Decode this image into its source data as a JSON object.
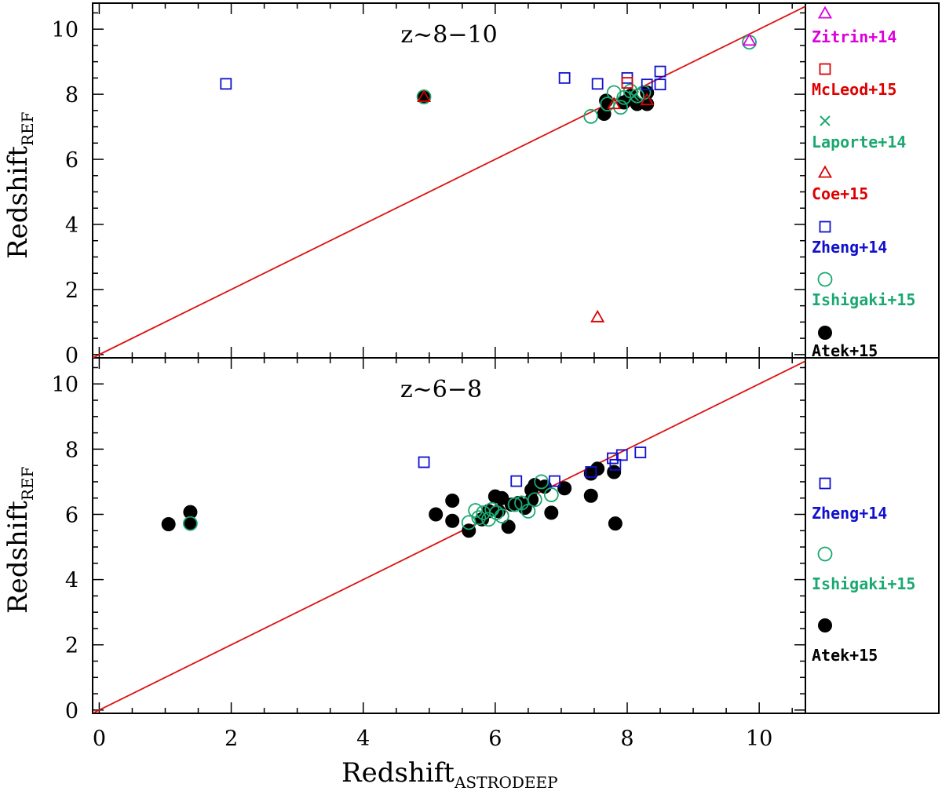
{
  "chart_data": [
    {
      "type": "scatter",
      "title": "z~8−10",
      "xlabel": "Redshift",
      "xlabel_sub": "ASTRODEEP",
      "ylabel": "Redshift",
      "ylabel_sub": "REF",
      "xlim": [
        -0.1,
        10.7
      ],
      "ylim": [
        -0.1,
        10.8
      ],
      "xticks": [
        0,
        2,
        4,
        6,
        8,
        10
      ],
      "yticks": [
        0,
        2,
        4,
        6,
        8,
        10
      ],
      "reference_line": "one-to-one",
      "series": [
        {
          "name": "Atek+15",
          "marker": "filled-circle",
          "color": "#000000",
          "points": [
            [
              4.92,
              7.92
            ],
            [
              7.65,
              7.4
            ],
            [
              7.68,
              7.8
            ],
            [
              7.95,
              7.75
            ],
            [
              8.05,
              7.95
            ],
            [
              8.15,
              7.7
            ],
            [
              8.3,
              7.7
            ],
            [
              8.3,
              8.05
            ]
          ]
        },
        {
          "name": "Ishigaki+15",
          "marker": "open-circle",
          "color": "#1aa870",
          "points": [
            [
              4.92,
              7.92
            ],
            [
              7.45,
              7.32
            ],
            [
              7.7,
              7.7
            ],
            [
              7.8,
              8.05
            ],
            [
              7.9,
              7.6
            ],
            [
              7.95,
              7.9
            ],
            [
              8.05,
              8.1
            ],
            [
              8.15,
              7.95
            ],
            [
              8.25,
              8.05
            ],
            [
              9.85,
              9.6
            ]
          ]
        },
        {
          "name": "Zheng+14",
          "marker": "open-square",
          "color": "#1010cc",
          "points": [
            [
              1.92,
              8.32
            ],
            [
              7.05,
              8.5
            ],
            [
              7.55,
              8.32
            ],
            [
              8.0,
              8.5
            ],
            [
              8.3,
              8.3
            ],
            [
              8.5,
              8.3
            ],
            [
              8.5,
              8.7
            ]
          ]
        },
        {
          "name": "Coe+15",
          "marker": "open-triangle",
          "color": "#dd0000",
          "points": [
            [
              4.92,
              7.92
            ],
            [
              7.55,
              1.15
            ],
            [
              7.8,
              7.7
            ],
            [
              8.3,
              7.82
            ]
          ]
        },
        {
          "name": "Laporte+14",
          "marker": "cross",
          "color": "#1aa870",
          "points": [
            [
              8.1,
              7.95
            ]
          ]
        },
        {
          "name": "McLeod+15",
          "marker": "open-square",
          "color": "#dd0000",
          "points": [
            [
              8.0,
              8.35
            ]
          ]
        },
        {
          "name": "Zitrin+14",
          "marker": "open-triangle",
          "color": "#dd00dd",
          "points": [
            [
              9.85,
              9.65
            ]
          ]
        }
      ],
      "legend_order": [
        "Zitrin+14",
        "McLeod+15",
        "Laporte+14",
        "Coe+15",
        "Zheng+14",
        "Ishigaki+15",
        "Atek+15"
      ]
    },
    {
      "type": "scatter",
      "title": "z~6−8",
      "xlabel": "Redshift",
      "xlabel_sub": "ASTRODEEP",
      "ylabel": "Redshift",
      "ylabel_sub": "REF",
      "xlim": [
        -0.1,
        10.7
      ],
      "ylim": [
        -0.1,
        10.8
      ],
      "xticks": [
        0,
        2,
        4,
        6,
        8,
        10
      ],
      "yticks": [
        0,
        2,
        4,
        6,
        8,
        10
      ],
      "reference_line": "one-to-one",
      "series": [
        {
          "name": "Atek+15",
          "marker": "filled-circle",
          "color": "#000000",
          "points": [
            [
              1.05,
              5.7
            ],
            [
              1.38,
              6.07
            ],
            [
              1.38,
              5.72
            ],
            [
              5.1,
              6.0
            ],
            [
              5.35,
              6.42
            ],
            [
              5.35,
              5.8
            ],
            [
              5.6,
              5.5
            ],
            [
              5.8,
              5.85
            ],
            [
              5.9,
              6.1
            ],
            [
              6.0,
              6.55
            ],
            [
              6.05,
              6.1
            ],
            [
              6.1,
              6.5
            ],
            [
              6.2,
              5.62
            ],
            [
              6.25,
              6.3
            ],
            [
              6.35,
              6.35
            ],
            [
              6.45,
              6.2
            ],
            [
              6.55,
              6.75
            ],
            [
              6.55,
              6.45
            ],
            [
              6.6,
              6.9
            ],
            [
              6.75,
              6.85
            ],
            [
              6.85,
              6.05
            ],
            [
              7.05,
              6.8
            ],
            [
              7.45,
              6.57
            ],
            [
              7.45,
              7.25
            ],
            [
              7.55,
              7.4
            ],
            [
              7.8,
              7.3
            ],
            [
              7.82,
              5.72
            ]
          ]
        },
        {
          "name": "Ishigaki+15",
          "marker": "open-circle",
          "color": "#1aa870",
          "points": [
            [
              1.38,
              5.72
            ],
            [
              5.6,
              5.75
            ],
            [
              5.7,
              6.12
            ],
            [
              5.75,
              5.9
            ],
            [
              5.82,
              6.05
            ],
            [
              5.9,
              5.85
            ],
            [
              5.95,
              6.15
            ],
            [
              6.02,
              6.05
            ],
            [
              6.1,
              5.95
            ],
            [
              6.3,
              6.3
            ],
            [
              6.4,
              6.35
            ],
            [
              6.5,
              6.1
            ],
            [
              6.6,
              6.45
            ],
            [
              6.7,
              7.0
            ],
            [
              6.85,
              6.6
            ]
          ]
        },
        {
          "name": "Zheng+14",
          "marker": "open-square",
          "color": "#1010cc",
          "points": [
            [
              4.92,
              7.6
            ],
            [
              6.32,
              7.02
            ],
            [
              6.9,
              7.02
            ],
            [
              7.45,
              7.3
            ],
            [
              7.78,
              7.72
            ],
            [
              7.82,
              7.52
            ],
            [
              7.92,
              7.82
            ],
            [
              8.2,
              7.9
            ]
          ]
        }
      ],
      "legend_order": [
        "Zheng+14",
        "Ishigaki+15",
        "Atek+15"
      ]
    }
  ]
}
